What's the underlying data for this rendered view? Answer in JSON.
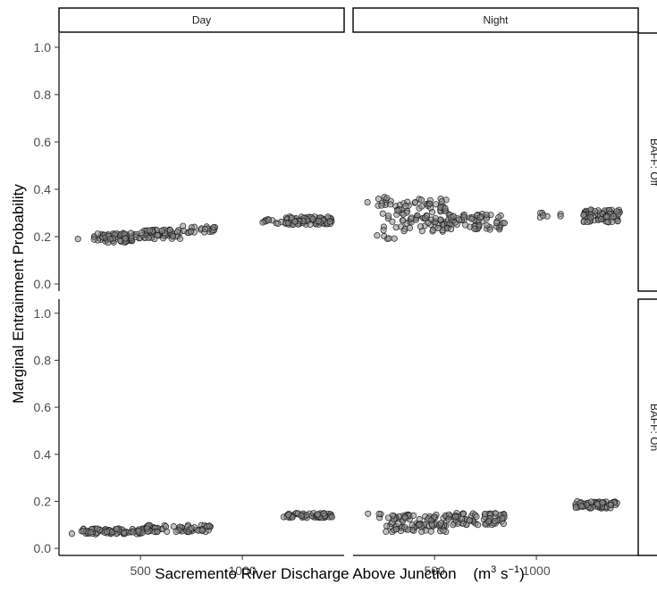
{
  "chart_data": {
    "type": "scatter",
    "xlabel": "Sacremento River Discharge Above Junction",
    "xlabel_unit": {
      "base": "(m",
      "sup1": "3",
      "mid": " s",
      "sup2": "−1",
      "end": ")"
    },
    "ylabel": "Marginal Entrainment Probability",
    "xlim": [
      100,
      1500
    ],
    "ylim": [
      -0.03,
      1.06
    ],
    "x_ticks": [
      500,
      1000
    ],
    "x_tick_labels": [
      "500",
      "1000"
    ],
    "y_ticks": [
      0.0,
      0.2,
      0.4,
      0.6,
      0.8,
      1.0
    ],
    "y_tick_labels": [
      "0.0",
      "0.2",
      "0.4",
      "0.6",
      "0.8",
      "1.0"
    ],
    "columns": [
      "Day",
      "Night"
    ],
    "rows": [
      "BAFF: Off",
      "BAFF: On"
    ],
    "grid": false,
    "marker": {
      "fill": "#8c8c8c",
      "stroke": "#222222",
      "opacity": 0.55
    },
    "panels": [
      {
        "column": "Day",
        "row": "BAFF: Off",
        "clusters": [
          {
            "x": [
              180,
              200
            ],
            "y": [
              0.19,
              0.19
            ],
            "n": 1
          },
          {
            "x": [
              270,
              500
            ],
            "y": [
              0.175,
              0.215
            ],
            "n": 70
          },
          {
            "x": [
              500,
              700
            ],
            "y": [
              0.19,
              0.23
            ],
            "n": 55
          },
          {
            "x": [
              700,
              900
            ],
            "y": [
              0.215,
              0.245
            ],
            "n": 22
          },
          {
            "x": [
              1080,
              1150
            ],
            "y": [
              0.255,
              0.275
            ],
            "n": 7
          },
          {
            "x": [
              1165,
              1195
            ],
            "y": [
              0.255,
              0.27
            ],
            "n": 3
          },
          {
            "x": [
              1210,
              1440
            ],
            "y": [
              0.25,
              0.285
            ],
            "n": 75
          }
        ]
      },
      {
        "column": "Night",
        "row": "BAFF: Off",
        "clusters": [
          {
            "x": [
              170,
              290
            ],
            "y": [
              0.33,
              0.37
            ],
            "n": 12
          },
          {
            "x": [
              210,
              320
            ],
            "y": [
              0.19,
              0.3
            ],
            "n": 10
          },
          {
            "x": [
              290,
              560
            ],
            "y": [
              0.22,
              0.36
            ],
            "n": 90
          },
          {
            "x": [
              560,
              850
            ],
            "y": [
              0.23,
              0.3
            ],
            "n": 70
          },
          {
            "x": [
              1010,
              1060
            ],
            "y": [
              0.28,
              0.31
            ],
            "n": 5
          },
          {
            "x": [
              1100,
              1120
            ],
            "y": [
              0.28,
              0.3
            ],
            "n": 2
          },
          {
            "x": [
              1230,
              1410
            ],
            "y": [
              0.26,
              0.315
            ],
            "n": 70
          }
        ]
      },
      {
        "column": "Day",
        "row": "BAFF: On",
        "clusters": [
          {
            "x": [
              150,
              170
            ],
            "y": [
              0.06,
              0.065
            ],
            "n": 1
          },
          {
            "x": [
              210,
              520
            ],
            "y": [
              0.06,
              0.085
            ],
            "n": 80
          },
          {
            "x": [
              520,
              860
            ],
            "y": [
              0.07,
              0.1
            ],
            "n": 60
          },
          {
            "x": [
              1200,
              1440
            ],
            "y": [
              0.13,
              0.15
            ],
            "n": 60
          }
        ]
      },
      {
        "column": "Night",
        "row": "BAFF: On",
        "clusters": [
          {
            "x": [
              160,
              260
            ],
            "y": [
              0.13,
              0.155
            ],
            "n": 4
          },
          {
            "x": [
              260,
              560
            ],
            "y": [
              0.07,
              0.15
            ],
            "n": 90
          },
          {
            "x": [
              560,
              850
            ],
            "y": [
              0.1,
              0.15
            ],
            "n": 70
          },
          {
            "x": [
              1190,
              1400
            ],
            "y": [
              0.17,
              0.2
            ],
            "n": 65
          }
        ]
      }
    ]
  }
}
